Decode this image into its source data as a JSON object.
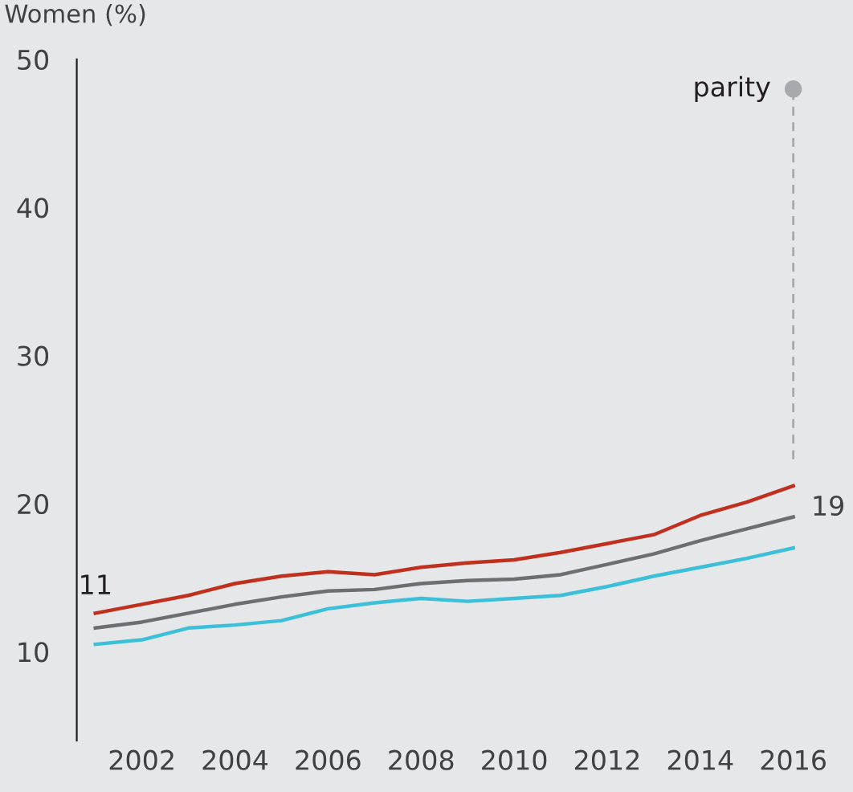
{
  "chart_data": {
    "type": "line",
    "ylabel": "Women (%)",
    "xlim": [
      2000.6,
      2016
    ],
    "ylim": [
      4,
      50
    ],
    "xticks": [
      2002,
      2004,
      2006,
      2008,
      2010,
      2012,
      2014,
      2016
    ],
    "yticks": [
      10,
      20,
      30,
      40,
      50
    ],
    "grid": false,
    "legend": false,
    "line_style": "solid",
    "x": [
      2001,
      2002,
      2003,
      2004,
      2005,
      2006,
      2007,
      2008,
      2009,
      2010,
      2011,
      2012,
      2013,
      2014,
      2015,
      2016
    ],
    "series": [
      {
        "color": "#c0301e",
        "values": [
          12.6,
          13.2,
          13.8,
          14.6,
          15.1,
          15.4,
          15.2,
          15.7,
          16.0,
          16.2,
          16.7,
          17.3,
          17.9,
          19.2,
          20.1,
          21.2
        ]
      },
      {
        "color": "#6d6e71",
        "values": [
          11.6,
          12.0,
          12.6,
          13.2,
          13.7,
          14.1,
          14.2,
          14.6,
          14.8,
          14.9,
          15.2,
          15.9,
          16.6,
          17.5,
          18.3,
          19.1
        ]
      },
      {
        "color": "#3cbfd8",
        "values": [
          10.5,
          10.8,
          11.6,
          11.8,
          12.1,
          12.9,
          13.3,
          13.6,
          13.4,
          13.6,
          13.8,
          14.4,
          15.1,
          15.7,
          16.3,
          17.0
        ]
      },
      {
        "type": "line",
        "line_style": "dashed",
        "color": "#a7a9ac",
        "x": [
          2016,
          2016
        ],
        "values": [
          23,
          48
        ]
      },
      {
        "type": "scatter",
        "name": "parity",
        "marker": "circle",
        "color": "#a7a9ac",
        "values": [
          null,
          null,
          null,
          null,
          null,
          null,
          null,
          null,
          null,
          null,
          null,
          null,
          null,
          null,
          null,
          48
        ]
      }
    ],
    "annotations": [
      {
        "text": "11",
        "x": 2001,
        "y": 12.6
      },
      {
        "text": "19",
        "x": 2016,
        "y": 19.1
      }
    ]
  }
}
